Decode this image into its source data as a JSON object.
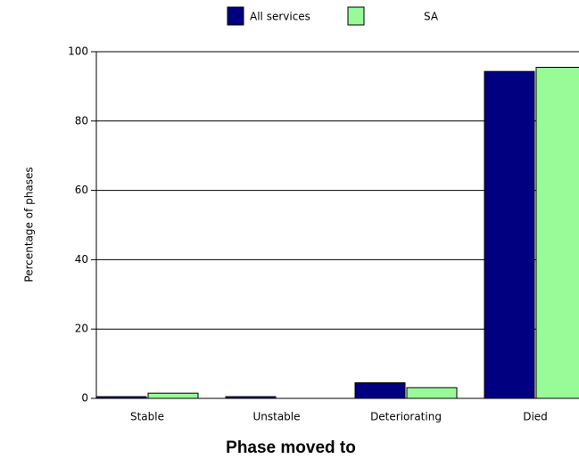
{
  "chart_data": {
    "type": "bar",
    "x_label": "Phase moved to",
    "y_label": "Percentage of phases",
    "categories": [
      "Stable",
      "Unstable",
      "Deteriorating",
      "Died"
    ],
    "series": [
      {
        "name": "All services",
        "color": "#000080",
        "values": [
          0.5,
          0.5,
          4.5,
          94.3
        ]
      },
      {
        "name": "SA",
        "color": "#98fb98",
        "values": [
          1.5,
          0,
          3.1,
          95.5
        ]
      }
    ],
    "ylim": [
      0,
      100
    ],
    "yticks": [
      0,
      20,
      40,
      60,
      80,
      100
    ],
    "grid": true,
    "legend": "top"
  }
}
